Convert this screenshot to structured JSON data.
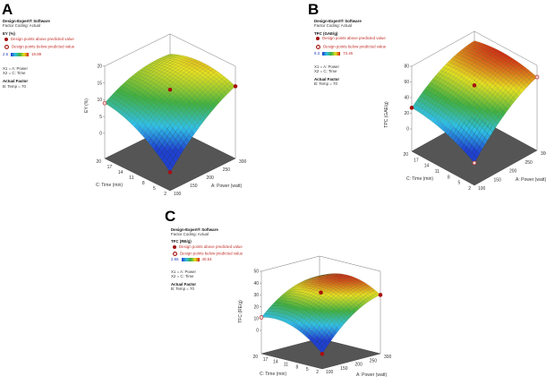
{
  "panels": [
    {
      "letter": "A",
      "software": "Design-Expert® Software",
      "coding": "Factor Coding: Actual",
      "response": "EY (%)",
      "legend_above": "Design points above predicted value",
      "legend_below": "Design points below predicted value",
      "range_min": "2.5",
      "range_max": "19.89",
      "x1": "X1 = A: Power",
      "x2": "X2 = C: Time",
      "actual_factor_label": "Actual Factor",
      "actual_factor": "B: Temp = 70"
    },
    {
      "letter": "B",
      "software": "Design-Expert® Software",
      "coding": "Factor Coding: Actual",
      "response": "TPC (GAE/g)",
      "legend_above": "Design points above predicted value",
      "legend_below": "Design points below predicted value",
      "range_min": "9.3",
      "range_max": "73.46",
      "x1": "X1 = A: Power",
      "x2": "X2 = C: Time",
      "actual_factor_label": "Actual Factor",
      "actual_factor": "B: Temp = 70"
    },
    {
      "letter": "C",
      "software": "Design-Expert® Software",
      "coding": "Factor Coding: Actual",
      "response": "TFC (RE/g)",
      "legend_above": "Design points above predicted value",
      "legend_below": "Design points below predicted value",
      "range_min": "2.96",
      "range_max": "40.54",
      "x1": "X1 = A: Power",
      "x2": "X2 = C: Time",
      "actual_factor_label": "Actual Factor",
      "actual_factor": "B: Temp = 70"
    }
  ],
  "chart_data": [
    {
      "type": "surface",
      "title": "EY (%)",
      "xlabel": "A: Power (watt)",
      "ylabel": "C: Time  (min)",
      "zlabel": "EY (%)",
      "x_ticks": [
        100,
        150,
        200,
        250,
        300
      ],
      "y_ticks": [
        2,
        5,
        8,
        11,
        14,
        17,
        20
      ],
      "z_ticks": [
        0,
        5,
        10,
        15,
        20
      ],
      "zlim": [
        0,
        20
      ],
      "x_grid": [
        100,
        200,
        300
      ],
      "y_grid": [
        2,
        11,
        20
      ],
      "z_grid": [
        [
          -2,
          8,
          14
        ],
        [
          5.75,
          13,
          16.25
        ],
        [
          9,
          13.5,
          14
        ]
      ],
      "color_range": [
        2.5,
        19.89
      ],
      "design_points": [
        {
          "x": 100,
          "y": 2,
          "z": -2,
          "position": "above"
        },
        {
          "x": 200,
          "y": 11,
          "z": 13,
          "position": "above"
        },
        {
          "x": 300,
          "y": 2,
          "z": 14,
          "position": "above"
        },
        {
          "x": 100,
          "y": 20,
          "z": 9,
          "position": "below"
        }
      ]
    },
    {
      "type": "surface",
      "title": "TPC (GAE/g)",
      "xlabel": "A: Power (watt)",
      "ylabel": "C: Time  (min)",
      "zlabel": "TPC (GAE/g)",
      "x_ticks": [
        100,
        150,
        200,
        250,
        300
      ],
      "y_ticks": [
        2,
        5,
        8,
        11,
        14,
        17,
        20
      ],
      "z_ticks": [
        0,
        20,
        40,
        60,
        80
      ],
      "zlim": [
        0,
        80
      ],
      "x_grid": [
        100,
        200,
        300
      ],
      "y_grid": [
        2,
        11,
        20
      ],
      "z_grid": [
        [
          0,
          41.5,
          65
        ],
        [
          19.5,
          55,
          72.5
        ],
        [
          27,
          56.5,
          68
        ]
      ],
      "color_range": [
        9.3,
        73.46
      ],
      "design_points": [
        {
          "x": 100,
          "y": 2,
          "z": 0,
          "position": "below"
        },
        {
          "x": 200,
          "y": 11,
          "z": 55,
          "position": "above"
        },
        {
          "x": 300,
          "y": 2,
          "z": 65,
          "position": "below"
        },
        {
          "x": 100,
          "y": 20,
          "z": 27,
          "position": "above"
        }
      ]
    },
    {
      "type": "surface",
      "title": "TFC (RE/g)",
      "xlabel": "A: Power (watt)",
      "ylabel": "C: Time  (min)",
      "zlabel": "TFC (RE/g)",
      "x_ticks": [
        100,
        150,
        200,
        250,
        300
      ],
      "y_ticks": [
        2,
        5,
        8,
        11,
        14,
        17,
        20
      ],
      "z_ticks": [
        0,
        10,
        20,
        30,
        40,
        50
      ],
      "zlim": [
        0,
        50
      ],
      "x_grid": [
        100,
        200,
        300
      ],
      "y_grid": [
        2,
        11,
        20
      ],
      "z_grid": [
        [
          -7,
          18.5,
          30
        ],
        [
          10.25,
          32,
          39.75
        ],
        [
          11,
          29,
          33
        ]
      ],
      "color_range": [
        2.96,
        40.54
      ],
      "design_points": [
        {
          "x": 100,
          "y": 2,
          "z": -7,
          "position": "above"
        },
        {
          "x": 200,
          "y": 11,
          "z": 32,
          "position": "above"
        },
        {
          "x": 300,
          "y": 2,
          "z": 30,
          "position": "above"
        },
        {
          "x": 100,
          "y": 20,
          "z": 11,
          "position": "below"
        }
      ]
    }
  ]
}
